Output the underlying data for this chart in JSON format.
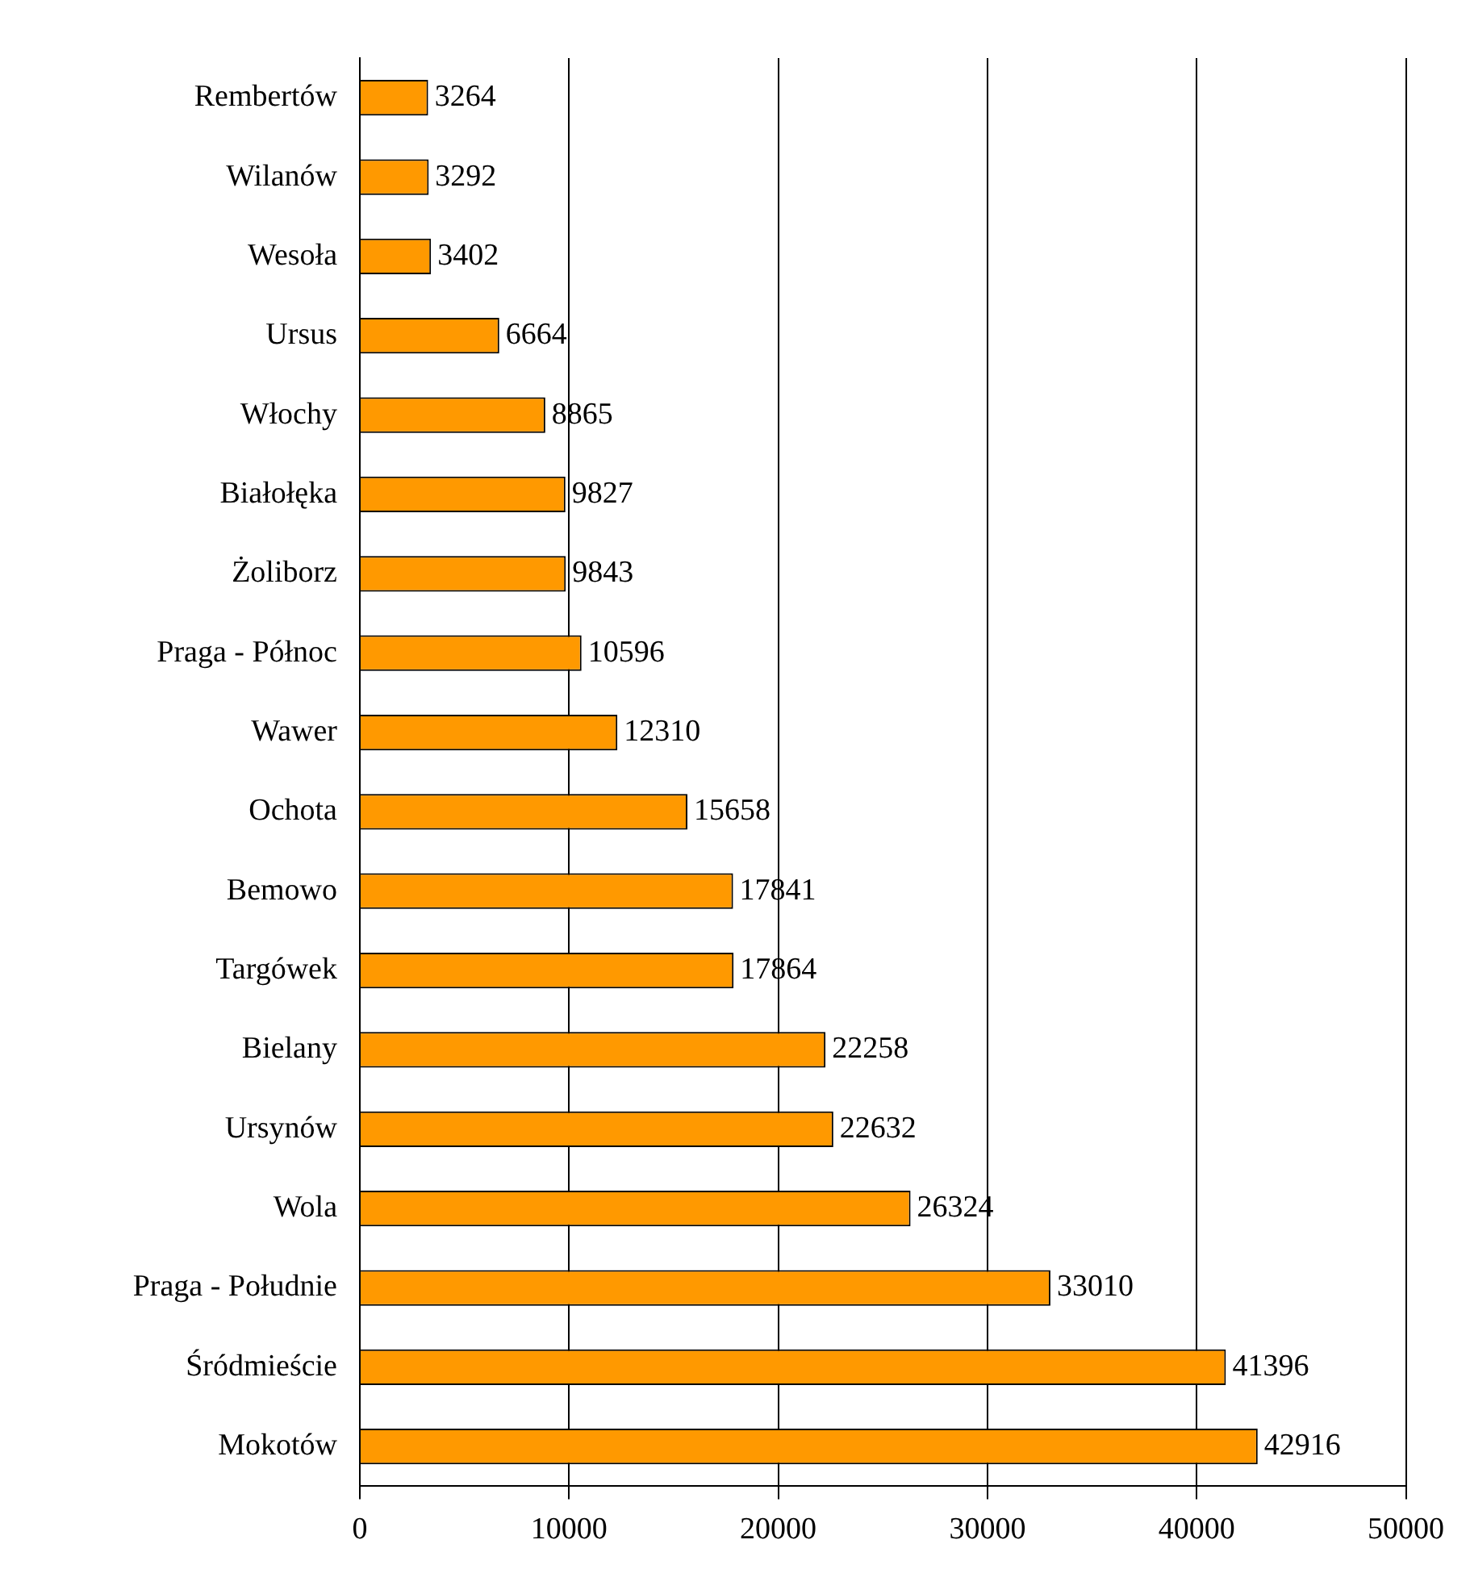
{
  "chart_data": {
    "type": "bar",
    "orientation": "horizontal",
    "categories": [
      "Rembertów",
      "Wilanów",
      "Wesoła",
      "Ursus",
      "Włochy",
      "Białołęka",
      "Żoliborz",
      "Praga - Północ",
      "Wawer",
      "Ochota",
      "Bemowo",
      "Targówek",
      "Bielany",
      "Ursynów",
      "Wola",
      "Praga - Południe",
      "Śródmieście",
      "Mokotów"
    ],
    "values": [
      3264,
      3292,
      3402,
      6664,
      8865,
      9827,
      9843,
      10596,
      12310,
      15658,
      17841,
      17864,
      22258,
      22632,
      26324,
      33010,
      41396,
      42916
    ],
    "color": "#ff9900",
    "xlim": [
      0,
      50000
    ],
    "xticks": [
      0,
      10000,
      20000,
      30000,
      40000,
      50000
    ],
    "grid": "x",
    "data_labels": true,
    "legend": false
  }
}
